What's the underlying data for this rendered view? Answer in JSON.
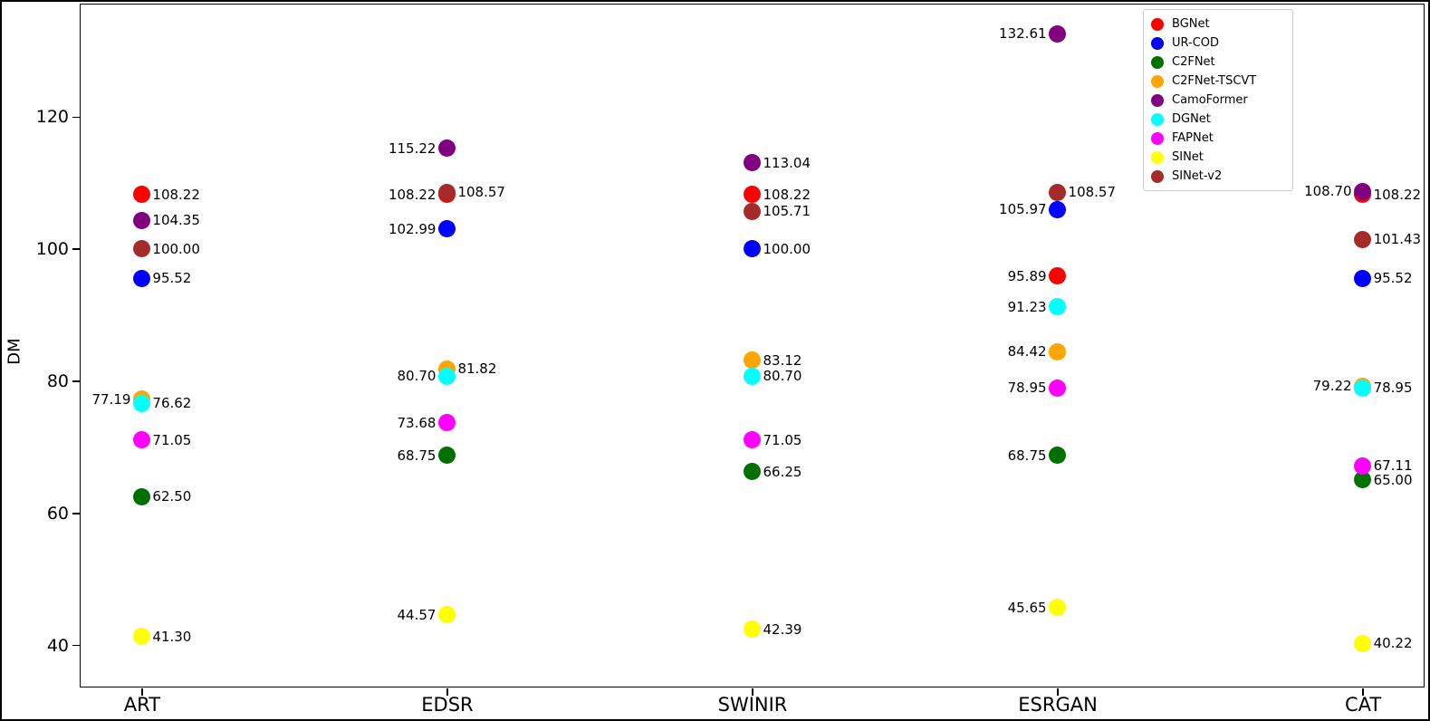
{
  "chart_data": {
    "type": "scatter",
    "title": "",
    "xlabel": "",
    "ylabel": "DM",
    "grid": false,
    "legend_position": "upper right",
    "categories": [
      "ART",
      "EDSR",
      "SWINIR",
      "ESRGAN",
      "CAT"
    ],
    "yticks": [
      40,
      60,
      80,
      100,
      120
    ],
    "ylim": [
      33.7,
      137.0
    ],
    "series": [
      {
        "name": "BGNet",
        "color": "#ff0000",
        "points": [
          {
            "category": "ART",
            "value": 108.22,
            "label_side": "right"
          },
          {
            "category": "EDSR",
            "value": 108.22,
            "label_side": "left"
          },
          {
            "category": "SWINIR",
            "value": 108.22,
            "label_side": "right"
          },
          {
            "category": "ESRGAN",
            "value": 95.89,
            "label_side": "left"
          },
          {
            "category": "CAT",
            "value": 108.22,
            "label_side": "right"
          }
        ]
      },
      {
        "name": "UR-COD",
        "color": "#0000ff",
        "points": [
          {
            "category": "ART",
            "value": 95.52,
            "label_side": "right"
          },
          {
            "category": "EDSR",
            "value": 102.99,
            "label_side": "left"
          },
          {
            "category": "SWINIR",
            "value": 100.0,
            "label_side": "right"
          },
          {
            "category": "ESRGAN",
            "value": 105.97,
            "label_side": "left"
          },
          {
            "category": "CAT",
            "value": 95.52,
            "label_side": "right"
          }
        ]
      },
      {
        "name": "C2FNet",
        "color": "#007000",
        "points": [
          {
            "category": "ART",
            "value": 62.5,
            "label_side": "right"
          },
          {
            "category": "EDSR",
            "value": 68.75,
            "label_side": "left"
          },
          {
            "category": "SWINIR",
            "value": 66.25,
            "label_side": "right"
          },
          {
            "category": "ESRGAN",
            "value": 68.75,
            "label_side": "left"
          },
          {
            "category": "CAT",
            "value": 65.0,
            "label_side": "right"
          }
        ]
      },
      {
        "name": "C2FNet-TSCVT",
        "color": "#ffa500",
        "points": [
          {
            "category": "ART",
            "value": 77.19,
            "label_side": "left"
          },
          {
            "category": "EDSR",
            "value": 81.82,
            "label_side": "right"
          },
          {
            "category": "SWINIR",
            "value": 83.12,
            "label_side": "right"
          },
          {
            "category": "ESRGAN",
            "value": 84.42,
            "label_side": "left"
          },
          {
            "category": "CAT",
            "value": 79.22,
            "label_side": "left"
          }
        ]
      },
      {
        "name": "CamoFormer",
        "color": "#800080",
        "points": [
          {
            "category": "ART",
            "value": 104.35,
            "label_side": "right"
          },
          {
            "category": "EDSR",
            "value": 115.22,
            "label_side": "left"
          },
          {
            "category": "SWINIR",
            "value": 113.04,
            "label_side": "right"
          },
          {
            "category": "ESRGAN",
            "value": 132.61,
            "label_side": "left"
          },
          {
            "category": "CAT",
            "value": 108.7,
            "label_side": "left"
          }
        ]
      },
      {
        "name": "DGNet",
        "color": "#00ffff",
        "points": [
          {
            "category": "ART",
            "value": 76.62,
            "label_side": "right"
          },
          {
            "category": "EDSR",
            "value": 80.7,
            "label_side": "left"
          },
          {
            "category": "SWINIR",
            "value": 80.7,
            "label_side": "right"
          },
          {
            "category": "ESRGAN",
            "value": 91.23,
            "label_side": "left"
          },
          {
            "category": "CAT",
            "value": 78.95,
            "label_side": "right"
          }
        ]
      },
      {
        "name": "FAPNet",
        "color": "#ff00ff",
        "points": [
          {
            "category": "ART",
            "value": 71.05,
            "label_side": "right"
          },
          {
            "category": "EDSR",
            "value": 73.68,
            "label_side": "left"
          },
          {
            "category": "SWINIR",
            "value": 71.05,
            "label_side": "right"
          },
          {
            "category": "ESRGAN",
            "value": 78.95,
            "label_side": "left"
          },
          {
            "category": "CAT",
            "value": 67.11,
            "label_side": "right"
          }
        ]
      },
      {
        "name": "SINet",
        "color": "#ffff00",
        "points": [
          {
            "category": "ART",
            "value": 41.3,
            "label_side": "right"
          },
          {
            "category": "EDSR",
            "value": 44.57,
            "label_side": "left"
          },
          {
            "category": "SWINIR",
            "value": 42.39,
            "label_side": "right"
          },
          {
            "category": "ESRGAN",
            "value": 45.65,
            "label_side": "left"
          },
          {
            "category": "CAT",
            "value": 40.22,
            "label_side": "right"
          }
        ]
      },
      {
        "name": "SINet-v2",
        "color": "#a52a2a",
        "points": [
          {
            "category": "ART",
            "value": 100.0,
            "label_side": "right"
          },
          {
            "category": "EDSR",
            "value": 108.57,
            "label_side": "right"
          },
          {
            "category": "SWINIR",
            "value": 105.71,
            "label_side": "right"
          },
          {
            "category": "ESRGAN",
            "value": 108.57,
            "label_side": "right"
          },
          {
            "category": "CAT",
            "value": 101.43,
            "label_side": "right"
          }
        ]
      }
    ]
  }
}
